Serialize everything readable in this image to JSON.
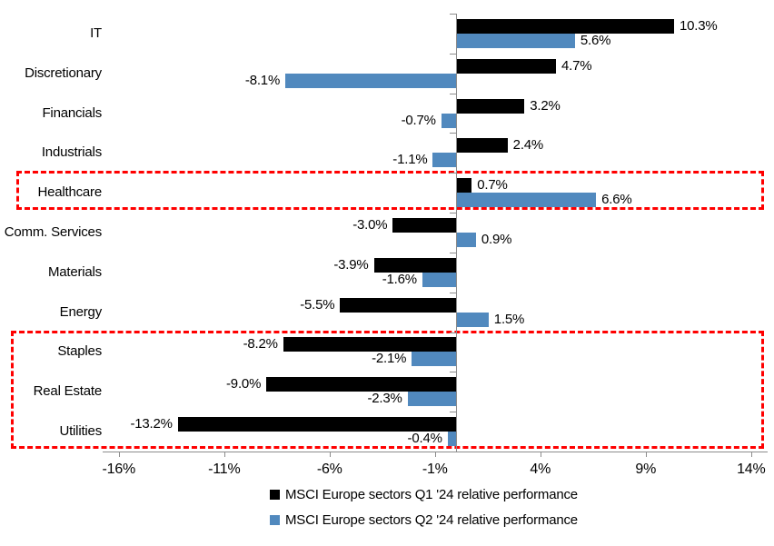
{
  "chart_data": {
    "type": "bar",
    "orientation": "horizontal",
    "title": "",
    "categories": [
      "IT",
      "Discretionary",
      "Financials",
      "Industrials",
      "Healthcare",
      "Comm. Services",
      "Materials",
      "Energy",
      "Staples",
      "Real Estate",
      "Utilities"
    ],
    "series": [
      {
        "name": "MSCI Europe sectors Q1 '24 relative performance",
        "color": "#000000",
        "values": [
          10.3,
          4.7,
          3.2,
          2.4,
          0.7,
          -3.0,
          -3.9,
          -5.5,
          -8.2,
          -9.0,
          -13.2
        ],
        "labels": [
          "10.3%",
          "4.7%",
          "3.2%",
          "2.4%",
          "0.7%",
          "-3.0%",
          "-3.9%",
          "-5.5%",
          "-8.2%",
          "-9.0%",
          "-13.2%"
        ]
      },
      {
        "name": "MSCI Europe sectors Q2 '24 relative performance",
        "color": "#5189be",
        "values": [
          5.6,
          -8.1,
          -0.7,
          -1.1,
          6.6,
          0.9,
          -1.6,
          1.5,
          -2.1,
          -2.3,
          -0.4
        ],
        "labels": [
          "5.6%",
          "-8.1%",
          "-0.7%",
          "-1.1%",
          "6.6%",
          "0.9%",
          "-1.6%",
          "1.5%",
          "-2.1%",
          "-2.3%",
          "-0.4%"
        ]
      }
    ],
    "x_axis": {
      "tick_labels": [
        "-16%",
        "-11%",
        "-6%",
        "-1%",
        "4%",
        "9%",
        "14%"
      ],
      "tick_values": [
        -16,
        -11,
        -6,
        -1,
        4,
        9,
        14
      ],
      "min": -16.8,
      "max": 14.8,
      "grid": false
    },
    "legend_position": "bottom",
    "axis_color": "#8c8c8c",
    "highlight_color": "#ff0000",
    "highlights": [
      {
        "label": "healthcare-box",
        "categories": [
          "Healthcare"
        ]
      },
      {
        "label": "staples-realestate-utilities-box",
        "categories": [
          "Staples",
          "Real Estate",
          "Utilities"
        ]
      }
    ]
  }
}
